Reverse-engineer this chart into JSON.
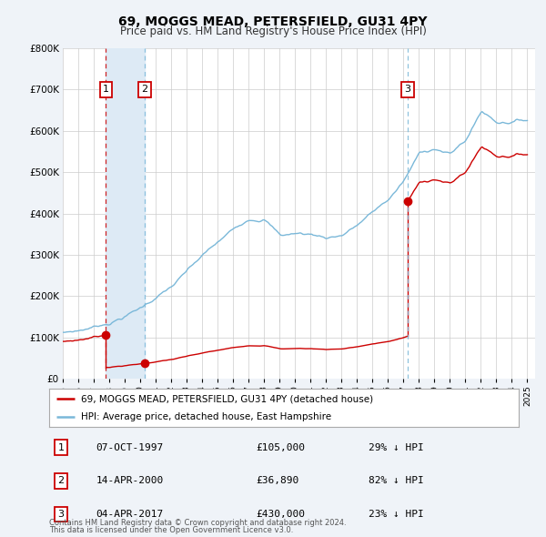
{
  "title": "69, MOGGS MEAD, PETERSFIELD, GU31 4PY",
  "subtitle": "Price paid vs. HM Land Registry's House Price Index (HPI)",
  "xlim": [
    1995.0,
    2025.5
  ],
  "ylim": [
    0,
    800000
  ],
  "yticks": [
    0,
    100000,
    200000,
    300000,
    400000,
    500000,
    600000,
    700000,
    800000
  ],
  "ytick_labels": [
    "£0",
    "£100K",
    "£200K",
    "£300K",
    "£400K",
    "£500K",
    "£600K",
    "£700K",
    "£800K"
  ],
  "background_color": "#eff3f8",
  "plot_bg_color": "#ffffff",
  "grid_color": "#cccccc",
  "hpi_color": "#7ab8d9",
  "price_color": "#cc0000",
  "sale_dot_color": "#cc0000",
  "transaction_shade_color": "#ddeaf5",
  "transactions": [
    {
      "num": 1,
      "date_str": "07-OCT-1997",
      "date_year": 1997.77,
      "price": 105000,
      "line_color": "#cc0000",
      "line_style": "dashed"
    },
    {
      "num": 2,
      "date_str": "14-APR-2000",
      "date_year": 2000.28,
      "price": 36890,
      "line_color": "#7ab8d9",
      "line_style": "dashed"
    },
    {
      "num": 3,
      "date_str": "04-APR-2017",
      "date_year": 2017.27,
      "price": 430000,
      "line_color": "#7ab8d9",
      "line_style": "dashed"
    }
  ],
  "legend_entries": [
    "69, MOGGS MEAD, PETERSFIELD, GU31 4PY (detached house)",
    "HPI: Average price, detached house, East Hampshire"
  ],
  "footnote1": "Contains HM Land Registry data © Crown copyright and database right 2024.",
  "footnote2": "This data is licensed under the Open Government Licence v3.0.",
  "table_rows": [
    {
      "num": 1,
      "date": "07-OCT-1997",
      "price": "£105,000",
      "pct": "29% ↓ HPI"
    },
    {
      "num": 2,
      "date": "14-APR-2000",
      "price": "£36,890",
      "pct": "82% ↓ HPI"
    },
    {
      "num": 3,
      "date": "04-APR-2017",
      "price": "£430,000",
      "pct": "23% ↓ HPI"
    }
  ],
  "hpi_waypoints_x": [
    1995,
    1996,
    1997,
    1998,
    1999,
    2000,
    2001,
    2002,
    2003,
    2004,
    2005,
    2006,
    2007,
    2008,
    2009,
    2010,
    2011,
    2012,
    2013,
    2014,
    2015,
    2016,
    2017,
    2018,
    2019,
    2020,
    2021,
    2022,
    2023,
    2024,
    2025
  ],
  "hpi_waypoints_y": [
    112000,
    118000,
    128000,
    140000,
    158000,
    178000,
    205000,
    230000,
    265000,
    300000,
    330000,
    360000,
    390000,
    395000,
    355000,
    360000,
    358000,
    352000,
    360000,
    385000,
    415000,
    445000,
    490000,
    555000,
    570000,
    555000,
    590000,
    660000,
    635000,
    640000,
    645000
  ]
}
